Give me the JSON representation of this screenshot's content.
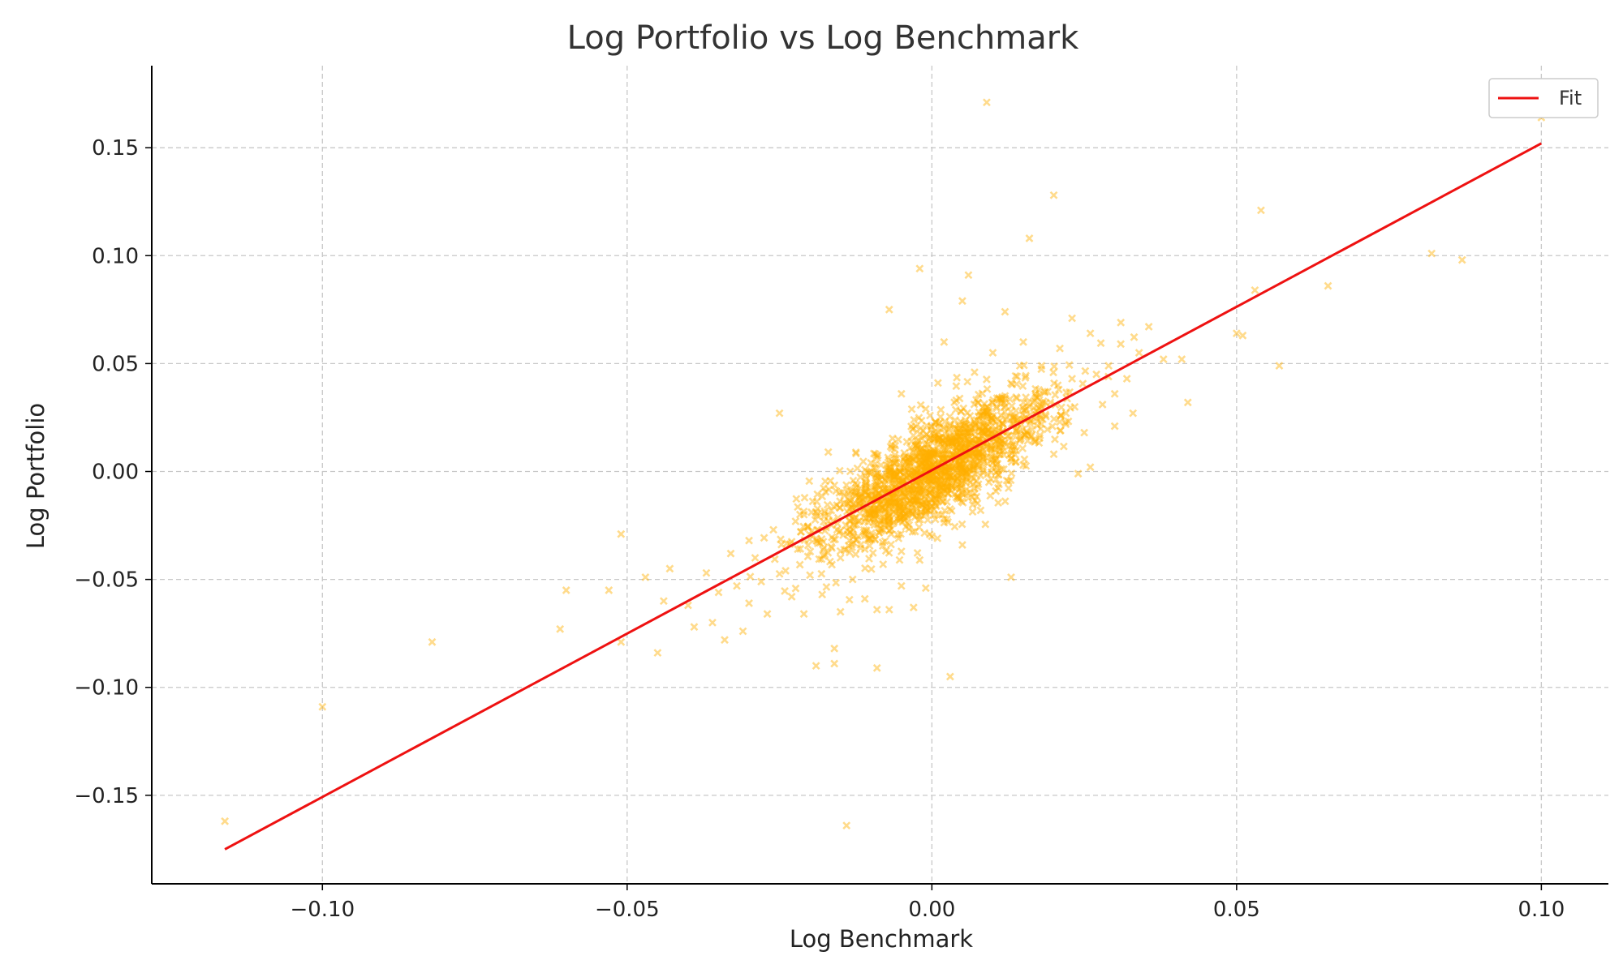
{
  "chart_data": {
    "type": "scatter",
    "title": "Log Portfolio vs Log Benchmark",
    "xlabel": "Log Benchmark",
    "ylabel": "Log Portfolio",
    "xlim": [
      -0.128,
      0.111
    ],
    "ylim": [
      -0.191,
      0.188
    ],
    "xticks": [
      -0.1,
      -0.05,
      0.0,
      0.05,
      0.1
    ],
    "yticks": [
      -0.15,
      -0.1,
      -0.05,
      0.0,
      0.05,
      0.1,
      0.15
    ],
    "xtick_labels": [
      "−0.10",
      "−0.05",
      "0.00",
      "0.05",
      "0.10"
    ],
    "ytick_labels": [
      "−0.15",
      "−0.10",
      "−0.05",
      "0.00",
      "0.05",
      "0.10",
      "0.15"
    ],
    "grid": true,
    "legend_position": "top-right",
    "colors": {
      "points": "#FFB000",
      "fit": "#EE1111",
      "grid": "#C8C8C8",
      "axis": "#000000"
    },
    "marker": "x",
    "series": [
      {
        "kind": "points",
        "points": [
          [
            -0.116,
            -0.162
          ],
          [
            -0.1,
            -0.109
          ],
          [
            -0.082,
            -0.079
          ],
          [
            -0.06,
            -0.055
          ],
          [
            -0.061,
            -0.073
          ],
          [
            -0.053,
            -0.055
          ],
          [
            -0.051,
            -0.029
          ],
          [
            -0.051,
            -0.079
          ],
          [
            -0.047,
            -0.049
          ],
          [
            -0.045,
            -0.084
          ],
          [
            -0.044,
            -0.06
          ],
          [
            -0.043,
            -0.045
          ],
          [
            -0.04,
            -0.062
          ],
          [
            -0.039,
            -0.072
          ],
          [
            -0.037,
            -0.047
          ],
          [
            -0.036,
            -0.07
          ],
          [
            -0.035,
            -0.056
          ],
          [
            -0.034,
            -0.078
          ],
          [
            -0.033,
            -0.038
          ],
          [
            -0.032,
            -0.053
          ],
          [
            -0.031,
            -0.074
          ],
          [
            -0.03,
            -0.032
          ],
          [
            -0.03,
            -0.061
          ],
          [
            -0.029,
            -0.04
          ],
          [
            -0.028,
            -0.051
          ],
          [
            -0.027,
            -0.066
          ],
          [
            -0.026,
            -0.027
          ],
          [
            -0.025,
            0.027
          ],
          [
            -0.024,
            -0.046
          ],
          [
            -0.023,
            -0.058
          ],
          [
            -0.022,
            -0.036
          ],
          [
            -0.021,
            -0.066
          ],
          [
            -0.021,
            -0.02
          ],
          [
            -0.02,
            -0.048
          ],
          [
            -0.019,
            -0.09
          ],
          [
            -0.019,
            -0.031
          ],
          [
            -0.018,
            -0.057
          ],
          [
            -0.017,
            -0.023
          ],
          [
            -0.017,
            0.009
          ],
          [
            -0.016,
            -0.082
          ],
          [
            -0.016,
            -0.089
          ],
          [
            -0.015,
            -0.04
          ],
          [
            -0.015,
            -0.065
          ],
          [
            -0.014,
            -0.015
          ],
          [
            -0.014,
            -0.164
          ],
          [
            -0.013,
            -0.05
          ],
          [
            -0.013,
            -0.029
          ],
          [
            -0.012,
            -0.012
          ],
          [
            -0.011,
            -0.036
          ],
          [
            -0.011,
            -0.059
          ],
          [
            -0.01,
            0.004
          ],
          [
            -0.01,
            -0.02
          ],
          [
            -0.009,
            -0.064
          ],
          [
            -0.009,
            -0.091
          ],
          [
            -0.008,
            -0.043
          ],
          [
            -0.008,
            -0.008
          ],
          [
            -0.007,
            0.075
          ],
          [
            -0.007,
            -0.025
          ],
          [
            -0.007,
            -0.064
          ],
          [
            -0.006,
            -0.015
          ],
          [
            -0.006,
            0.012
          ],
          [
            -0.005,
            -0.037
          ],
          [
            -0.005,
            -0.053
          ],
          [
            -0.005,
            0.036
          ],
          [
            -0.004,
            -0.006
          ],
          [
            -0.004,
            -0.024
          ],
          [
            -0.003,
            -0.063
          ],
          [
            -0.003,
            0.02
          ],
          [
            -0.003,
            -0.013
          ],
          [
            -0.002,
            0.094
          ],
          [
            -0.002,
            -0.041
          ],
          [
            -0.002,
            0.003
          ],
          [
            -0.001,
            0.029
          ],
          [
            -0.001,
            -0.019
          ],
          [
            -0.001,
            -0.054
          ],
          [
            0.0,
            0.008
          ],
          [
            0.0,
            -0.03
          ],
          [
            0.001,
            0.015
          ],
          [
            0.001,
            -0.005
          ],
          [
            0.001,
            0.041
          ],
          [
            0.002,
            -0.022
          ],
          [
            0.002,
            0.06
          ],
          [
            0.003,
            0.006
          ],
          [
            0.003,
            -0.095
          ],
          [
            0.003,
            0.022
          ],
          [
            0.004,
            -0.012
          ],
          [
            0.004,
            0.033
          ],
          [
            0.005,
            0.002
          ],
          [
            0.005,
            0.079
          ],
          [
            0.005,
            -0.034
          ],
          [
            0.006,
            0.018
          ],
          [
            0.006,
            0.091
          ],
          [
            0.007,
            -0.008
          ],
          [
            0.007,
            0.046
          ],
          [
            0.008,
            0.012
          ],
          [
            0.008,
            -0.018
          ],
          [
            0.009,
            0.171
          ],
          [
            0.009,
            0.027
          ],
          [
            0.01,
            0.004
          ],
          [
            0.01,
            0.055
          ],
          [
            0.011,
            0.019
          ],
          [
            0.011,
            -0.006
          ],
          [
            0.012,
            0.035
          ],
          [
            0.012,
            0.074
          ],
          [
            0.013,
            0.01
          ],
          [
            0.013,
            -0.049
          ],
          [
            0.014,
            0.044
          ],
          [
            0.014,
            0.024
          ],
          [
            0.015,
            0.003
          ],
          [
            0.015,
            0.06
          ],
          [
            0.016,
            0.108
          ],
          [
            0.016,
            0.03
          ],
          [
            0.017,
            0.014
          ],
          [
            0.018,
            0.049
          ],
          [
            0.018,
            0.022
          ],
          [
            0.019,
            0.037
          ],
          [
            0.02,
            0.128
          ],
          [
            0.02,
            0.008
          ],
          [
            0.021,
            0.057
          ],
          [
            0.022,
            0.027
          ],
          [
            0.023,
            0.043
          ],
          [
            0.023,
            0.071
          ],
          [
            0.024,
            -0.001
          ],
          [
            0.025,
            0.018
          ],
          [
            0.026,
            0.064
          ],
          [
            0.026,
            0.002
          ],
          [
            0.027,
            0.045
          ],
          [
            0.028,
            0.031
          ],
          [
            0.029,
            0.049
          ],
          [
            0.03,
            0.021
          ],
          [
            0.03,
            0.036
          ],
          [
            0.031,
            0.069
          ],
          [
            0.032,
            0.043
          ],
          [
            0.033,
            0.027
          ],
          [
            0.034,
            0.055
          ],
          [
            0.038,
            0.052
          ],
          [
            0.041,
            0.052
          ],
          [
            0.042,
            0.032
          ],
          [
            0.05,
            0.064
          ],
          [
            0.051,
            0.063
          ],
          [
            0.053,
            0.084
          ],
          [
            0.054,
            0.121
          ],
          [
            0.057,
            0.049
          ],
          [
            0.065,
            0.086
          ],
          [
            0.082,
            0.101
          ],
          [
            0.087,
            0.098
          ],
          [
            0.1,
            0.164
          ]
        ]
      },
      {
        "kind": "line",
        "name": "Fit",
        "x": [
          -0.116,
          0.1
        ],
        "y": [
          -0.175,
          0.152
        ]
      }
    ]
  }
}
